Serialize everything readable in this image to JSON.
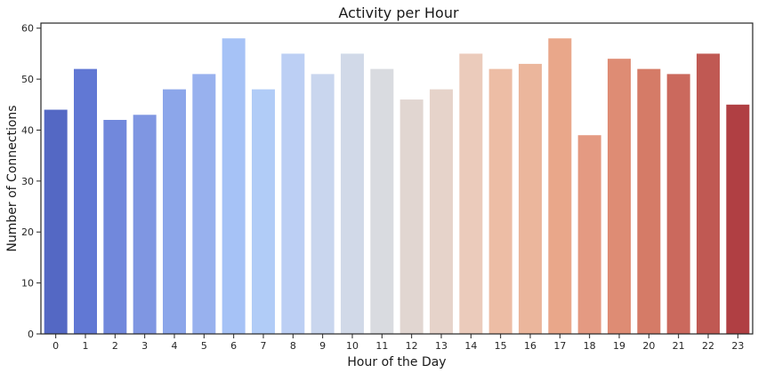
{
  "chart_data": {
    "type": "bar",
    "title": "Activity per Hour",
    "xlabel": "Hour of the Day",
    "ylabel": "Number of Connections",
    "categories": [
      "0",
      "1",
      "2",
      "3",
      "4",
      "5",
      "6",
      "7",
      "8",
      "9",
      "10",
      "11",
      "12",
      "13",
      "14",
      "15",
      "16",
      "17",
      "18",
      "19",
      "20",
      "21",
      "22",
      "23"
    ],
    "values": [
      44,
      52,
      42,
      43,
      48,
      51,
      58,
      48,
      55,
      51,
      55,
      52,
      46,
      48,
      55,
      52,
      53,
      58,
      39,
      54,
      52,
      51,
      55,
      45
    ],
    "colors": [
      "#5468c4",
      "#6178d4",
      "#7188dc",
      "#7f96e2",
      "#8ca6ea",
      "#98b1ee",
      "#a6c2f6",
      "#b1ccf7",
      "#bccff4",
      "#c9d6ee",
      "#d1d9e8",
      "#d9dbe0",
      "#e1d6d1",
      "#e6d3ca",
      "#ebcbbb",
      "#edbda5",
      "#ebb69c",
      "#e9a78a",
      "#e49a82",
      "#de8c74",
      "#d57b67",
      "#cb695d",
      "#c05953",
      "#b03f43"
    ],
    "yticks": [
      0,
      10,
      20,
      30,
      40,
      50,
      60
    ],
    "ylim": [
      0,
      61
    ],
    "grid": false,
    "legend": "none"
  }
}
